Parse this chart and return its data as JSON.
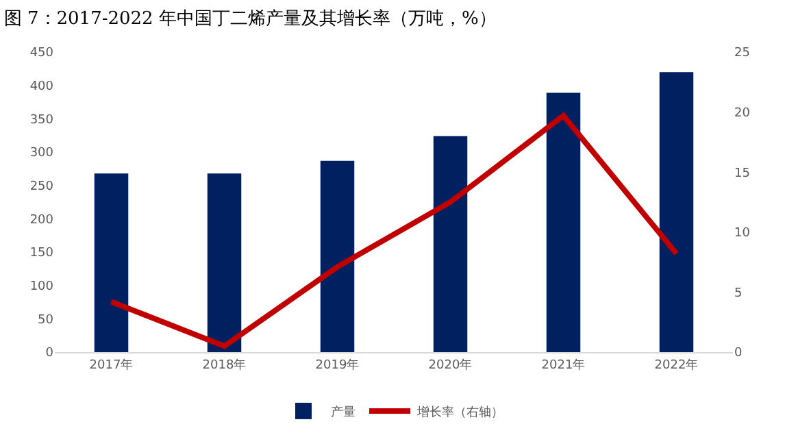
{
  "chart_data": {
    "type": "bar",
    "title": "图 7：2017-2022 年中国丁二烯产量及其增长率（万吨，%）",
    "categories": [
      "2017年",
      "2018年",
      "2019年",
      "2020年",
      "2021年",
      "2022年"
    ],
    "series": [
      {
        "name": "产量",
        "color": "#002060",
        "values": [
          268,
          268,
          287,
          324,
          389,
          420
        ]
      },
      {
        "name": "增长率（右轴）",
        "type": "line",
        "axis": "y2",
        "color": "#c00000",
        "values": [
          4.2,
          0.5,
          7.1,
          12.5,
          19.7,
          8.2
        ]
      }
    ],
    "ylim": [
      0,
      450
    ],
    "yticks": [
      0,
      50,
      100,
      150,
      200,
      250,
      300,
      350,
      400,
      450
    ],
    "y2lim": [
      0,
      25
    ],
    "y2ticks": [
      0,
      5,
      10,
      15,
      20,
      25
    ],
    "grid": false,
    "legend": "bottom",
    "marker": "none",
    "line_style": "solid"
  }
}
